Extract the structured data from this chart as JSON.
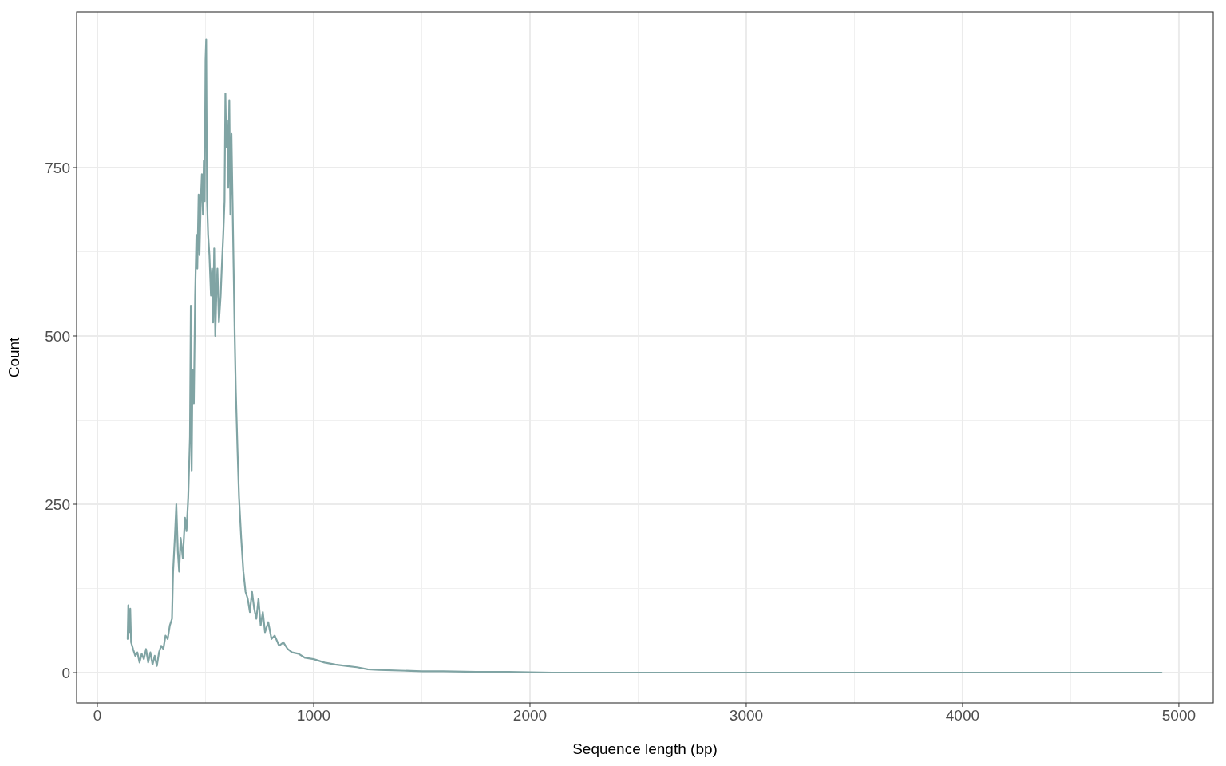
{
  "chart_data": {
    "type": "line",
    "xlabel": "Sequence length (bp)",
    "ylabel": "Count",
    "xlim": [
      -96,
      5159
    ],
    "ylim": [
      -45,
      981
    ],
    "xticks": [
      0,
      1000,
      2000,
      3000,
      4000,
      5000
    ],
    "yticks": [
      0,
      250,
      500,
      750
    ],
    "grid": true,
    "series": [
      {
        "color": "#80a4a4",
        "x": [
          140,
          143,
          147,
          152,
          156,
          165,
          175,
          185,
          195,
          205,
          215,
          225,
          235,
          245,
          255,
          265,
          275,
          285,
          295,
          305,
          315,
          325,
          335,
          345,
          350,
          358,
          365,
          372,
          378,
          385,
          395,
          405,
          412,
          420,
          428,
          432,
          436,
          440,
          446,
          452,
          458,
          462,
          468,
          472,
          478,
          483,
          488,
          492,
          496,
          500,
          503,
          507,
          512,
          518,
          525,
          530,
          535,
          540,
          545,
          550,
          555,
          562,
          570,
          575,
          582,
          588,
          592,
          596,
          600,
          605,
          610,
          615,
          620,
          625,
          630,
          635,
          640,
          648,
          655,
          665,
          675,
          685,
          695,
          705,
          715,
          725,
          735,
          745,
          755,
          765,
          775,
          790,
          805,
          820,
          840,
          860,
          880,
          900,
          930,
          960,
          1000,
          1050,
          1100,
          1150,
          1200,
          1250,
          1300,
          1400,
          1500,
          1600,
          1750,
          1900,
          2100,
          2500,
          3000,
          4000,
          4920
        ],
        "values": [
          50,
          100,
          60,
          95,
          45,
          35,
          25,
          30,
          15,
          28,
          20,
          35,
          15,
          30,
          12,
          25,
          10,
          30,
          40,
          35,
          55,
          50,
          70,
          80,
          150,
          200,
          250,
          180,
          150,
          200,
          170,
          230,
          210,
          260,
          350,
          545,
          300,
          450,
          400,
          560,
          650,
          600,
          710,
          620,
          700,
          740,
          680,
          760,
          700,
          910,
          940,
          700,
          650,
          620,
          560,
          600,
          520,
          630,
          500,
          560,
          600,
          520,
          560,
          600,
          650,
          700,
          860,
          780,
          820,
          720,
          850,
          680,
          800,
          700,
          600,
          500,
          420,
          330,
          260,
          200,
          150,
          120,
          110,
          90,
          120,
          95,
          80,
          110,
          70,
          90,
          60,
          75,
          50,
          55,
          40,
          45,
          35,
          30,
          28,
          22,
          20,
          15,
          12,
          10,
          8,
          5,
          4,
          3,
          2,
          2,
          1,
          1,
          0,
          0,
          0,
          0,
          0
        ]
      }
    ]
  }
}
